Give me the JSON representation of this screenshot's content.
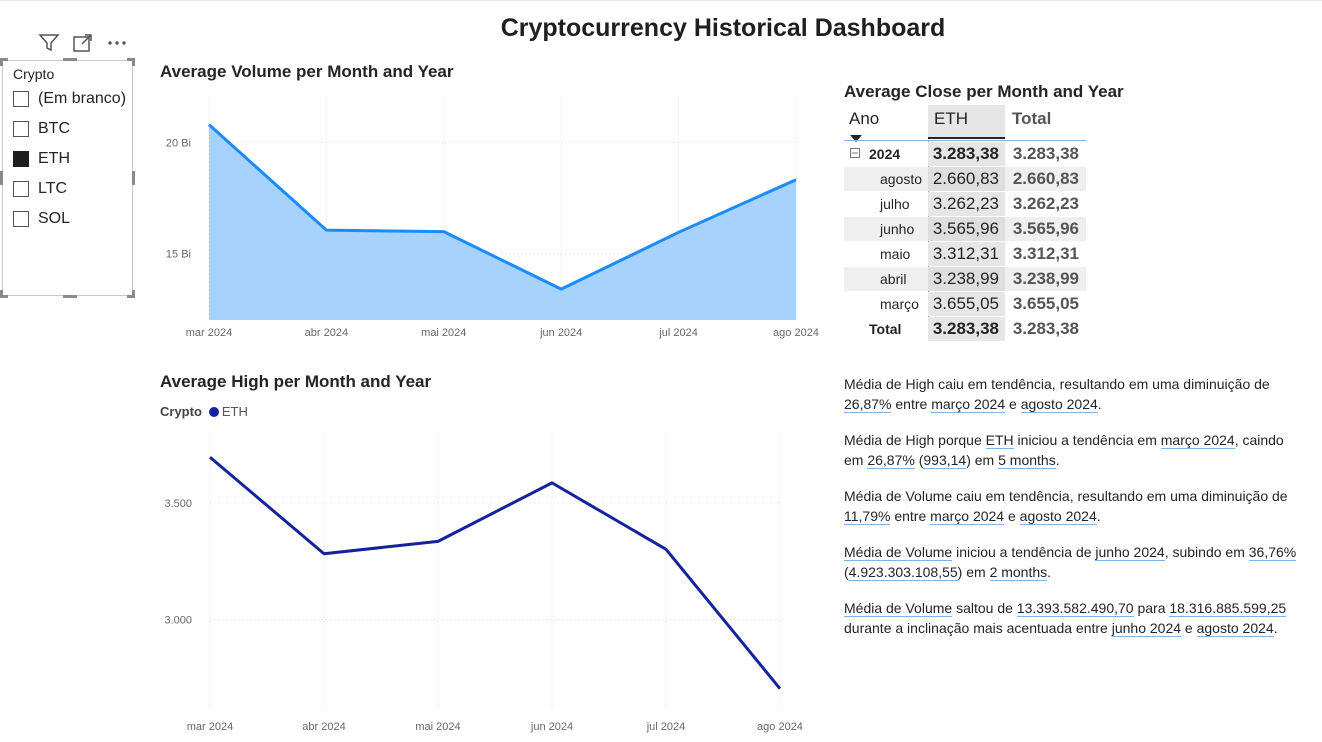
{
  "dashboard": {
    "title": "Cryptocurrency Historical Dashboard"
  },
  "slicer": {
    "header": "Crypto",
    "items": [
      {
        "label": "(Em branco)",
        "checked": false
      },
      {
        "label": "BTC",
        "checked": false
      },
      {
        "label": "ETH",
        "checked": true
      },
      {
        "label": "LTC",
        "checked": false
      },
      {
        "label": "SOL",
        "checked": false
      }
    ],
    "toolbar_icons": [
      "filter-icon",
      "focus-mode-icon",
      "more-options-icon"
    ]
  },
  "colors": {
    "volume_line": "#1a8cff",
    "volume_fill": "#a6d2fc",
    "high_line": "#14229b",
    "grid": "#d9d9d9"
  },
  "chart_data": [
    {
      "type": "area",
      "title": "Average Volume per Month and Year",
      "categories": [
        "mar 2024",
        "abr 2024",
        "mai 2024",
        "jun 2024",
        "jul 2024",
        "ago 2024"
      ],
      "series": [
        {
          "values": [
            20.8,
            16.05,
            15.98,
            13.39,
            15.95,
            18.32
          ]
        }
      ],
      "yticks": [
        "15 Bi",
        "20 Bi"
      ],
      "yticks_values": [
        15,
        20
      ],
      "ylim": [
        12.0,
        22.0
      ],
      "grid": true
    },
    {
      "type": "line",
      "title": "Average High per Month and Year",
      "legend_title": "Crypto",
      "categories": [
        "mar 2024",
        "abr 2024",
        "mai 2024",
        "jun 2024",
        "jul 2024",
        "ago 2024"
      ],
      "series": [
        {
          "name": "ETH",
          "values": [
            3696,
            3282,
            3335,
            3586,
            3301,
            2703
          ]
        }
      ],
      "yticks": [
        "3.000",
        "3.500"
      ],
      "yticks_values": [
        3000,
        3500
      ],
      "ylim": [
        2620,
        3800
      ],
      "legend_position": "top-left",
      "grid": true
    }
  ],
  "matrix": {
    "title": "Average Close per Month and Year",
    "col_row_header": "Ano",
    "col_eth": "ETH",
    "col_total": "Total",
    "year_row": {
      "label": "2024",
      "eth": "3.283,38",
      "total": "3.283,38"
    },
    "rows": [
      {
        "label": "agosto",
        "eth": "2.660,83",
        "total": "2.660,83"
      },
      {
        "label": "julho",
        "eth": "3.262,23",
        "total": "3.262,23"
      },
      {
        "label": "junho",
        "eth": "3.565,96",
        "total": "3.565,96"
      },
      {
        "label": "maio",
        "eth": "3.312,31",
        "total": "3.312,31"
      },
      {
        "label": "abril",
        "eth": "3.238,99",
        "total": "3.238,99"
      },
      {
        "label": "março",
        "eth": "3.655,05",
        "total": "3.655,05"
      }
    ],
    "total_row": {
      "label": "Total",
      "eth": "3.283,38",
      "total": "3.283,38"
    }
  },
  "narrative": {
    "p1": {
      "a": "Média de High caiu em tendência, resultando em uma diminuição de ",
      "b": "26,87%",
      "c": " entre ",
      "d": "março 2024",
      "e": " e ",
      "f": "agosto 2024",
      "g": "."
    },
    "p2": {
      "a": "Média de High porque ",
      "b": "ETH",
      "c": " iniciou a tendência em ",
      "d": "março 2024",
      "e": ", caindo em ",
      "f": "26,87%",
      "g": " (",
      "h": "993,14",
      "i": ") em ",
      "j": "5 months",
      "k": "."
    },
    "p3": {
      "a": "Média de Volume caiu em tendência, resultando em uma diminuição de ",
      "b": "11,79%",
      "c": " entre ",
      "d": "março 2024",
      "e": " e ",
      "f": "agosto 2024",
      "g": "."
    },
    "p4": {
      "a": "Média de Volume",
      "b": " iniciou a tendência de ",
      "c": "junho 2024",
      "d": ", subindo em ",
      "e": "36,76%",
      "f": " (",
      "g": "4.923.303.108,55",
      "h": ") em ",
      "i": "2 months",
      "j": "."
    },
    "p5": {
      "a": "Média de Volume",
      "b": " saltou de ",
      "c": "13.393.582.490,70",
      "d": " para ",
      "e": "18.316.885.599,25",
      "f": " durante a inclinação mais acentuada entre ",
      "g": "junho 2024",
      "h": " e ",
      "i": "agosto 2024",
      "j": "."
    }
  }
}
